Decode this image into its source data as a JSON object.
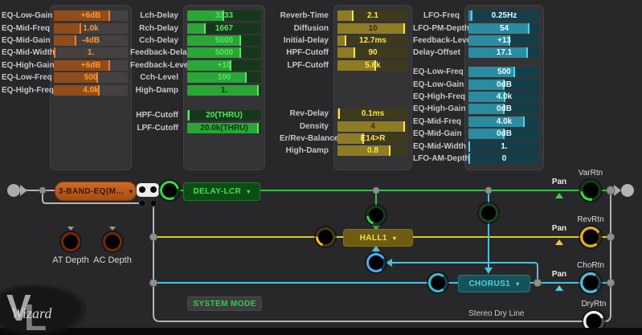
{
  "colors": {
    "orange_accent": "#ff7d1e",
    "green_accent": "#36d84a",
    "yellow_accent": "#ffe44d",
    "cyan_accent": "#45d9ec",
    "wire_gray": "#b4b4b4",
    "wire_green": "#3dbb4d",
    "wire_yellow": "#ddca28",
    "wire_cyan": "#4cc0d6"
  },
  "panels": [
    {
      "id": "eq3band",
      "theme": {
        "track": "#454140",
        "fill": "#8f4c1c",
        "marker": "#ff7d1e",
        "text": "#ff9831",
        "text_on_fill": "#ff9831"
      },
      "sections": [
        [
          {
            "label": "EQ-Low-Gain",
            "value": "+6dB",
            "fill": 0.76
          },
          {
            "label": "EQ-Mid-Freq",
            "value": "1.0k",
            "fill": 0.37
          },
          {
            "label": "EQ-Mid-Gain",
            "value": "-4dB",
            "fill": 0.3
          },
          {
            "label": "EQ-Mid-Width",
            "value": "1.",
            "fill": 0.02
          },
          {
            "label": "EQ-High-Gain",
            "value": "+6dB",
            "fill": 0.76
          },
          {
            "label": "EQ-Low-Freq",
            "value": "500",
            "fill": 0.6
          },
          {
            "label": "EQ-High-Freq",
            "value": "4.0k",
            "fill": 0.62
          }
        ]
      ]
    },
    {
      "id": "delay",
      "theme": {
        "track": "#16381a",
        "fill": "#2aa636",
        "marker": "#5ae566",
        "text": "#4fe85f",
        "text_on_fill": "#0c3511"
      },
      "sections": [
        [
          {
            "label": "Lch-Delay",
            "value": "3333",
            "fill": 0.5
          },
          {
            "label": "Rch-Delay",
            "value": "1667",
            "fill": 0.25
          },
          {
            "label": "Cch-Delay",
            "value": "5000",
            "fill": 0.73
          },
          {
            "label": "Feedback-Delay",
            "value": "5000",
            "fill": 0.73
          },
          {
            "label": "Feedback-Level",
            "value": "+10",
            "fill": 0.6
          },
          {
            "label": "Cch-Level",
            "value": "100",
            "fill": 0.8
          },
          {
            "label": "High-Damp",
            "value": "1.",
            "fill": 0.97
          }
        ],
        [
          {
            "label": "HPF-Cutoff",
            "value": "20(THRU)",
            "fill": 0.03
          },
          {
            "label": "LPF-Cutoff",
            "value": "20.0k(THRU)",
            "fill": 0.97
          }
        ]
      ]
    },
    {
      "id": "reverb",
      "theme": {
        "track": "#3e3a1c",
        "fill": "#8d7c24",
        "marker": "#ffe44d",
        "text": "#ffe44d",
        "text_on_fill": "#3a3206"
      },
      "sections": [
        [
          {
            "label": "Reverb-Time",
            "value": "2.1",
            "fill": 0.23
          },
          {
            "label": "Diffusion",
            "value": "10",
            "fill": 0.95
          },
          {
            "label": "Initial-Delay",
            "value": "12.7ms",
            "fill": 0.13
          },
          {
            "label": "HPF-Cutoff",
            "value": "90",
            "fill": 0.25
          },
          {
            "label": "LPF-Cutoff",
            "value": "5.6k",
            "fill": 0.55
          }
        ],
        [
          {
            "label": "Rev-Delay",
            "value": "0.1ms",
            "fill": 0.03
          },
          {
            "label": "Density",
            "value": "4",
            "fill": 0.95
          },
          {
            "label": "Er/Rev-Balance",
            "value": "E14>R",
            "fill": 0.37
          },
          {
            "label": "High-Damp",
            "value": "0.8",
            "fill": 0.75
          }
        ]
      ]
    },
    {
      "id": "chorus",
      "theme": {
        "track": "#123f4a",
        "fill": "#2b8ba0",
        "marker": "#45d9ec",
        "text": "#eafcff",
        "text_on_fill": "#eafcff"
      },
      "sections": [
        [
          {
            "label": "LFO-Freq",
            "value": "0.25Hz",
            "fill": 0.06
          },
          {
            "label": "LFO-PM-Depth",
            "value": "54",
            "fill": 0.85
          },
          {
            "label": "Feedback-Level",
            "value": "+13",
            "fill": 0.58
          },
          {
            "label": "Delay-Offset",
            "value": "17.1",
            "fill": 0.83
          }
        ],
        [
          {
            "label": "EQ-Low-Freq",
            "value": "500",
            "fill": 0.65
          },
          {
            "label": "EQ-Low-Gain",
            "value": "0dB",
            "fill": 0.5
          },
          {
            "label": "EQ-High-Freq",
            "value": "4.0k",
            "fill": 0.52
          },
          {
            "label": "EQ-High-Gain",
            "value": "0dB",
            "fill": 0.5
          },
          {
            "label": "EQ-Mid-Freq",
            "value": "4.0k",
            "fill": 0.79
          },
          {
            "label": "EQ-Mid-Gain",
            "value": "0dB",
            "fill": 0.5
          },
          {
            "label": "EQ-Mid-Width",
            "value": "1.",
            "fill": 0.02
          },
          {
            "label": "LFO-AM-Depth",
            "value": "0",
            "fill": 0.02
          }
        ]
      ]
    }
  ],
  "routing": {
    "caret": "▾",
    "blocks": {
      "eq": {
        "label": "3-BAND-EQ(M..."
      },
      "delay": {
        "label": "DELAY-LCR"
      },
      "reverb": {
        "label": "HALL1"
      },
      "chorus": {
        "label": "CHORUS1"
      },
      "system": {
        "label": "SYSTEM MODE"
      }
    },
    "pan_label": "Pan",
    "returns": [
      "VarRtn",
      "RevRtn",
      "ChoRtn",
      "DryRtn"
    ],
    "mod_knobs": [
      "AT Depth",
      "AC Depth"
    ],
    "stereo_dry_label": "Stereo Dry Line",
    "logo": {
      "v": "V",
      "l": "L",
      "script": "Wizard"
    }
  }
}
